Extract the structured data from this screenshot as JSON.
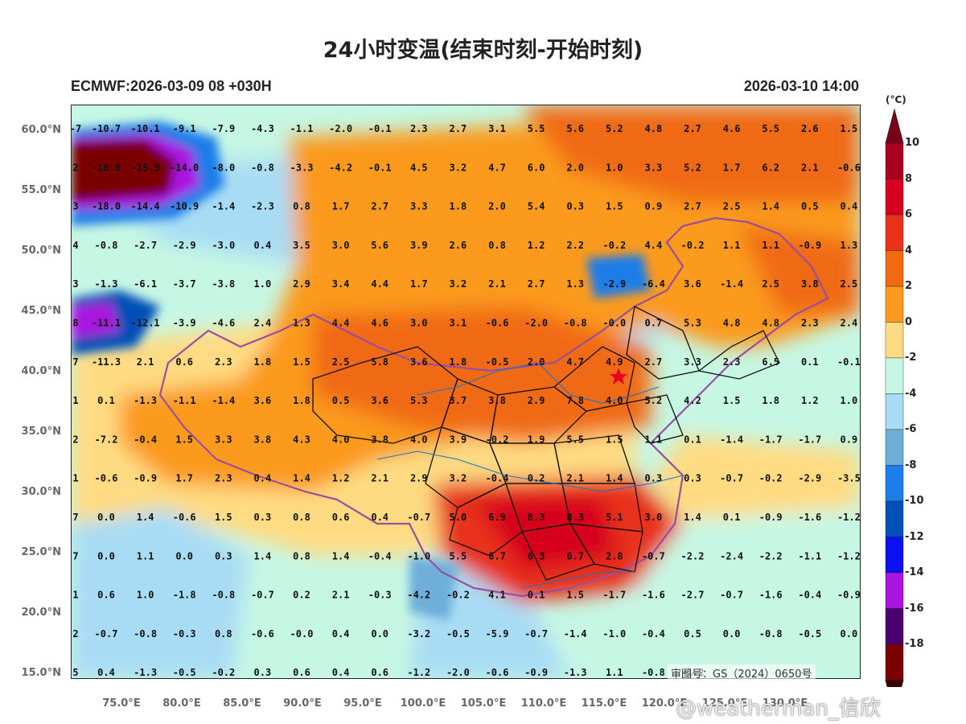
{
  "title": "24小时变温(结束时刻-开始时刻)",
  "model_info": "ECMWF:2026-03-09 08 +030H",
  "valid_time": "2026-03-10 14:00",
  "unit": "(°C)",
  "map_stamp": "审图号：GS（2024）0650号",
  "watermark": "@weatherman_信欣",
  "lat_labels": [
    "60.0°N",
    "55.0°N",
    "50.0°N",
    "45.0°N",
    "40.0°N",
    "35.0°N",
    "30.0°N",
    "25.0°N",
    "20.0°N",
    "15.0°N"
  ],
  "lon_labels": [
    "75.0°E",
    "80.0°E",
    "85.0°E",
    "90.0°E",
    "95.0°E",
    "100.0°E",
    "105.0°E",
    "110.0°E",
    "115.0°E",
    "120.0°E",
    "125.0°E",
    "130.0°E"
  ],
  "colorbar": {
    "labels": [
      "10",
      "8",
      "6",
      "4",
      "2",
      "0",
      "-2",
      "-4",
      "-6",
      "-8",
      "-10",
      "-12",
      "-14",
      "-16",
      "-18"
    ],
    "colors": [
      "#a8001e",
      "#d7001f",
      "#e8321a",
      "#f06a12",
      "#fb9a1f",
      "#fedb82",
      "#c6f7e4",
      "#a8dcf4",
      "#6eaed8",
      "#1e7de8",
      "#0050b8",
      "#0a10f0",
      "#a815e0",
      "#4b0070",
      "#7a0000"
    ]
  },
  "grid": {
    "lon": [
      75,
      80,
      85,
      90,
      95,
      100,
      105,
      110,
      115,
      120,
      125,
      130
    ],
    "lat": [
      60,
      57.5,
      55,
      52.5,
      50,
      47.5,
      45,
      42.5,
      40,
      37.5,
      35,
      32.5,
      30,
      27.5,
      25,
      22.5,
      20,
      17.5,
      15
    ],
    "values": [
      [
        "-10.7",
        "-10.1",
        "-9.1",
        "-7.9",
        "-4.3",
        "-1.1",
        "-2.0",
        "-0.1",
        "2.3",
        "2.7",
        "3.1",
        "5.5",
        "5.6",
        "5.2",
        "4.8",
        "2.7",
        "4.6",
        "5.5",
        "2.6",
        "1.5"
      ],
      [
        "-18.0",
        "-15.9",
        "-14.0",
        "-8.0",
        "-0.8",
        "-3.3",
        "-4.2",
        "-0.1",
        "4.5",
        "3.2",
        "4.7",
        "6.0",
        "2.0",
        "1.0",
        "3.3",
        "5.2",
        "1.7",
        "6.2",
        "2.1",
        "-0.6"
      ],
      [
        "-18.0",
        "-14.4",
        "-10.9",
        "-1.4",
        "-2.3",
        "0.8",
        "1.7",
        "2.7",
        "3.3",
        "1.8",
        "2.0",
        "5.4",
        "0.3",
        "1.5",
        "0.9",
        "2.7",
        "2.5",
        "1.4",
        "0.5",
        "0.4"
      ],
      [
        "-0.8",
        "-2.7",
        "-2.9",
        "-3.0",
        "0.4",
        "3.5",
        "3.0",
        "5.6",
        "3.9",
        "2.6",
        "0.8",
        "1.2",
        "2.2",
        "-0.2",
        "4.4",
        "-0.2",
        "1.1",
        "1.1",
        "-0.9",
        "1.3"
      ],
      [
        "-1.3",
        "-6.1",
        "-3.7",
        "-3.8",
        "1.0",
        "2.9",
        "3.4",
        "4.4",
        "1.7",
        "3.2",
        "2.1",
        "2.7",
        "1.3",
        "-2.9",
        "-6.4",
        "3.6",
        "-1.4",
        "2.5",
        "3.8",
        "2.5"
      ],
      [
        "-11.1",
        "-12.1",
        "-3.9",
        "-4.6",
        "2.4",
        "1.3",
        "4.4",
        "4.6",
        "3.0",
        "3.1",
        "-0.6",
        "-2.0",
        "-0.8",
        "-0.0",
        "0.7",
        "5.3",
        "4.8",
        "4.8",
        "2.3",
        "2.4"
      ],
      [
        "-11.3",
        "2.1",
        "0.6",
        "2.3",
        "1.8",
        "1.5",
        "2.5",
        "5.8",
        "3.6",
        "1.8",
        "-0.5",
        "2.0",
        "4.7",
        "4.9",
        "2.7",
        "3.3",
        "2.3",
        "6.5",
        "0.1",
        "-0.1"
      ],
      [
        "0.1",
        "-1.3",
        "-1.1",
        "-1.4",
        "3.6",
        "1.8",
        "0.5",
        "3.6",
        "5.3",
        "3.7",
        "3.8",
        "2.9",
        "7.8",
        "4.0",
        "5.2",
        "4.2",
        "1.5",
        "1.8",
        "1.2",
        "1.0"
      ],
      [
        "-7.2",
        "-0.4",
        "1.5",
        "3.3",
        "3.8",
        "4.3",
        "4.0",
        "3.8",
        "4.0",
        "3.9",
        "-0.2",
        "1.9",
        "5.5",
        "1.5",
        "1.1",
        "0.1",
        "-1.4",
        "-1.7",
        "-1.7",
        "0.9"
      ],
      [
        "-0.6",
        "-0.9",
        "1.7",
        "2.3",
        "0.4",
        "1.4",
        "1.2",
        "2.1",
        "2.9",
        "3.2",
        "-0.4",
        "0.2",
        "2.1",
        "1.4",
        "0.3",
        "0.3",
        "-0.7",
        "-0.2",
        "-2.9",
        "-3.5"
      ],
      [
        "0.0",
        "1.4",
        "-0.6",
        "1.5",
        "0.3",
        "0.8",
        "0.6",
        "0.4",
        "-0.7",
        "5.0",
        "6.9",
        "8.3",
        "8.3",
        "5.1",
        "3.0",
        "1.4",
        "0.1",
        "-0.9",
        "-1.6",
        "-1.2"
      ],
      [
        "0.0",
        "1.1",
        "0.0",
        "0.3",
        "1.4",
        "0.8",
        "1.4",
        "-0.4",
        "-1.0",
        "5.5",
        "6.7",
        "6.3",
        "6.7",
        "2.8",
        "-0.7",
        "-2.2",
        "-2.4",
        "-2.2",
        "-1.1",
        "-1.2"
      ],
      [
        "0.6",
        "1.0",
        "-1.8",
        "-0.8",
        "-0.7",
        "0.2",
        "2.1",
        "-0.3",
        "-4.2",
        "-0.2",
        "4.1",
        "0.1",
        "1.5",
        "-1.7",
        "-1.6",
        "-2.7",
        "-0.7",
        "-1.6",
        "-0.4",
        "-0.9"
      ],
      [
        "-0.7",
        "-0.8",
        "-0.3",
        "0.8",
        "-0.6",
        "-0.0",
        "0.4",
        "0.0",
        "-3.2",
        "-0.5",
        "-5.9",
        "-0.7",
        "-1.4",
        "-1.0",
        "-0.4",
        "0.5",
        "0.0",
        "-0.8",
        "-0.5",
        "0.0"
      ],
      [
        "0.4",
        "-1.3",
        "-0.5",
        "-0.2",
        "0.3",
        "0.6",
        "0.4",
        "0.6",
        "-1.2",
        "-2.0",
        "-0.6",
        "-0.9",
        "-1.3",
        "1.1",
        "-0.8",
        "-1.2",
        "",
        "",
        "",
        ""
      ]
    ],
    "left_partial": [
      "-7",
      "2",
      "3",
      "4",
      "3",
      "8",
      "7",
      "1",
      "2",
      "1",
      "7",
      "7",
      "1",
      "2",
      "5"
    ]
  }
}
